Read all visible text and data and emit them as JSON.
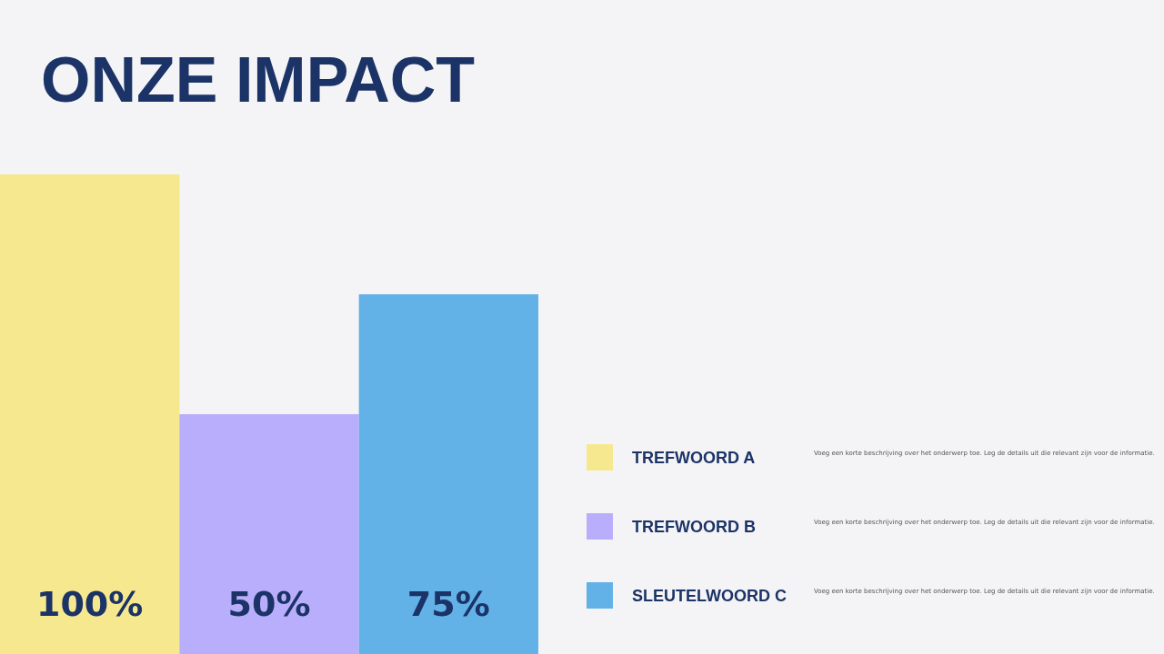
{
  "chart_data": {
    "type": "bar",
    "title": "ONZE IMPACT",
    "categories": [
      null,
      null,
      null
    ],
    "series": [
      {
        "name": "TREFWOORD A",
        "color": "#f5e88e",
        "values": [
          100,
          null,
          null
        ],
        "value_labels": [
          "100%",
          null,
          null
        ]
      },
      {
        "name": "TREFWOORD B",
        "color": "#b9aefc",
        "values": [
          null,
          50,
          null
        ],
        "value_labels": [
          null,
          "50%",
          null
        ]
      },
      {
        "name": "SLEUTELWOORD C",
        "color": "#62b1e7",
        "values": [
          null,
          null,
          75
        ],
        "value_labels": [
          null,
          null,
          "75%"
        ]
      }
    ],
    "stacked": true,
    "legend": "bottom right",
    "annotations": [
      "Voeg een korte beschrijving over het onderwerp toe. Leg de details uit die relevant zijn voor de informatie.",
      "Voeg een korte beschrijving over het onderwerp toe. Leg de details uit die relevant zijn voor de informatie.",
      "Voeg een korte beschrijving over het onderwerp toe. Leg de details uit die relevant zijn voor de informatie."
    ]
  }
}
